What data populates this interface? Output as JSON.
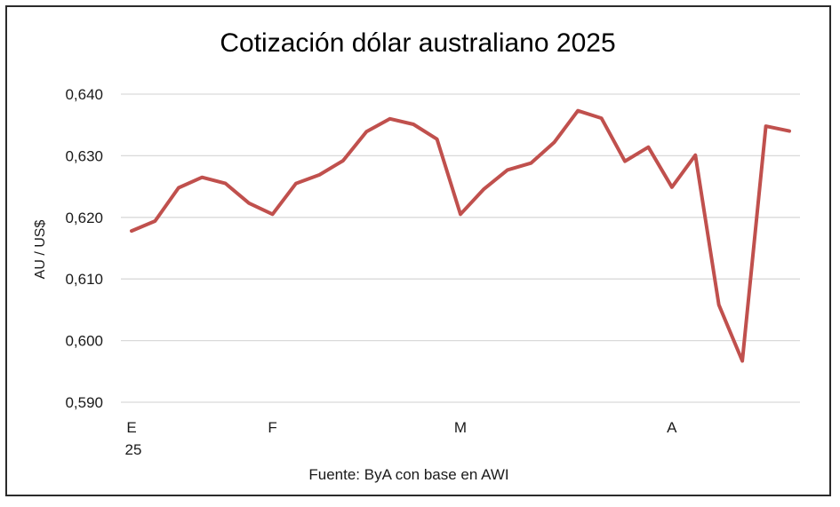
{
  "chart_data": {
    "type": "line",
    "title": "Cotización dólar australiano 2025",
    "ylabel": "AU / US$",
    "xlabel": "",
    "source": "Fuente: ByA con base en AWI",
    "ylim": [
      0.59,
      0.64
    ],
    "yticks": [
      "0,590",
      "0,600",
      "0,610",
      "0,620",
      "0,630",
      "0,640"
    ],
    "ytick_values": [
      0.59,
      0.6,
      0.61,
      0.62,
      0.63,
      0.64
    ],
    "xtick_labels": [
      {
        "index": 0,
        "label": "E",
        "sublabel": "25"
      },
      {
        "index": 6,
        "label": "F",
        "sublabel": ""
      },
      {
        "index": 14,
        "label": "M",
        "sublabel": ""
      },
      {
        "index": 23,
        "label": "A",
        "sublabel": ""
      }
    ],
    "grid": true,
    "color": "#C0504D",
    "series": [
      {
        "name": "",
        "values": [
          0.6178,
          0.6194,
          0.6248,
          0.6265,
          0.6255,
          0.6223,
          0.6205,
          0.6255,
          0.6269,
          0.6292,
          0.6339,
          0.636,
          0.6351,
          0.6327,
          0.6205,
          0.6246,
          0.6277,
          0.6288,
          0.6322,
          0.6373,
          0.6361,
          0.6291,
          0.6314,
          0.6249,
          0.6301,
          0.6058,
          0.5967,
          0.6348,
          0.634
        ]
      }
    ]
  }
}
